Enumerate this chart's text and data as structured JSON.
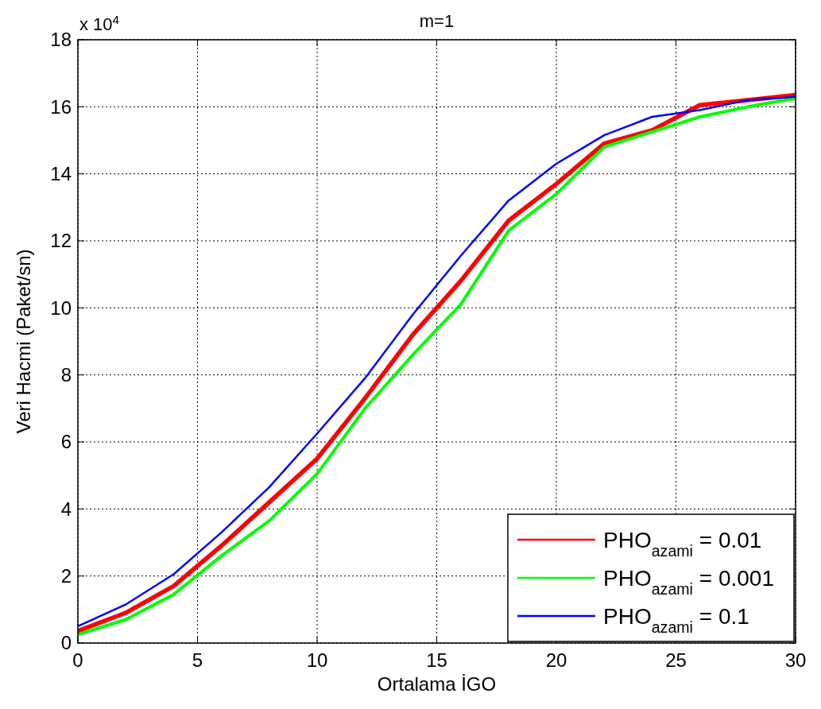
{
  "chart_data": {
    "type": "line",
    "title": "m=1",
    "xlabel": "Ortalama İGO",
    "ylabel": "Veri Hacmi (Paket/sn)",
    "annotations": [
      "x 10$^{4}$"
    ],
    "x": [
      0,
      2,
      4,
      6,
      8,
      10,
      12,
      14,
      16,
      18,
      20,
      22,
      24,
      26,
      28,
      30
    ],
    "series": [
      {
        "name": "PHO$_{azami}$ = 0.01",
        "color": "#ff0000",
        "values": [
          0.36,
          0.9,
          1.7,
          2.9,
          4.2,
          5.5,
          7.3,
          9.2,
          10.8,
          12.6,
          13.7,
          14.9,
          15.3,
          16.05,
          16.2,
          16.35
        ]
      },
      {
        "name": "PHO$_{azami}$ = 0.001",
        "color": "#00ff00",
        "values": [
          0.25,
          0.7,
          1.45,
          2.6,
          3.65,
          5.05,
          7.0,
          8.6,
          10.1,
          12.3,
          13.4,
          14.8,
          15.25,
          15.7,
          16.0,
          16.25
        ]
      },
      {
        "name": "PHO$_{azami}$ = 0.1",
        "color": "#0000ff",
        "values": [
          0.5,
          1.15,
          2.05,
          3.3,
          4.65,
          6.25,
          7.9,
          9.8,
          11.55,
          13.2,
          14.3,
          15.15,
          15.7,
          15.9,
          16.2,
          16.3
        ]
      }
    ],
    "xlim": [
      0,
      30
    ],
    "xticks": [
      0,
      5,
      10,
      15,
      20,
      25,
      30
    ],
    "ylim": [
      0,
      18
    ],
    "yticks": [
      0,
      2,
      4,
      6,
      8,
      10,
      12,
      14,
      16,
      18
    ],
    "grid": true,
    "legend": "bottom right",
    "line_style": "solid",
    "marker": "none"
  }
}
